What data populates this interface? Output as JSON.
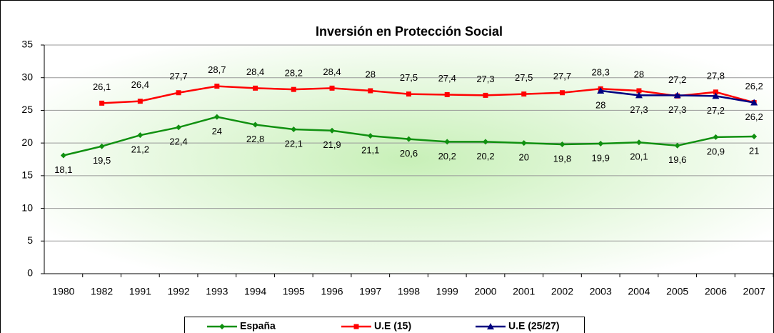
{
  "chart_data": {
    "type": "line",
    "title": "Inversión en Protección Social",
    "categories": [
      "1980",
      "1982",
      "1991",
      "1992",
      "1993",
      "1994",
      "1995",
      "1996",
      "1997",
      "1998",
      "1999",
      "2000",
      "2001",
      "2002",
      "2003",
      "2004",
      "2005",
      "2006",
      "2007"
    ],
    "ylim": [
      0,
      35
    ],
    "yticks": [
      0,
      5,
      10,
      15,
      20,
      25,
      30,
      35
    ],
    "grid": true,
    "legend": "bottom",
    "series": [
      {
        "name": "España",
        "color": "#109010",
        "marker": "diamond",
        "values": [
          18.1,
          19.5,
          21.2,
          22.4,
          24,
          22.8,
          22.1,
          21.9,
          21.1,
          20.6,
          20.2,
          20.2,
          20,
          19.8,
          19.9,
          20.1,
          19.6,
          20.9,
          21
        ],
        "value_labels": [
          "18,1",
          "19,5",
          "21,2",
          "22,4",
          "24",
          "22,8",
          "22,1",
          "21,9",
          "21,1",
          "20,6",
          "20,2",
          "20,2",
          "20",
          "19,8",
          "19,9",
          "20,1",
          "19,6",
          "20,9",
          "21"
        ]
      },
      {
        "name": "U.E (15)",
        "color": "#ff0000",
        "marker": "square",
        "values": [
          null,
          26.1,
          26.4,
          27.7,
          28.7,
          28.4,
          28.2,
          28.4,
          28,
          27.5,
          27.4,
          27.3,
          27.5,
          27.7,
          28.3,
          28,
          27.2,
          27.8,
          26.2
        ],
        "value_labels": [
          null,
          "26,1",
          "26,4",
          "27,7",
          "28,7",
          "28,4",
          "28,2",
          "28,4",
          "28",
          "27,5",
          "27,4",
          "27,3",
          "27,5",
          "27,7",
          "28,3",
          "28",
          "27,2",
          "27,8",
          "26,2"
        ]
      },
      {
        "name": "U.E (25/27)",
        "color": "#000080",
        "marker": "triangle",
        "values": [
          null,
          null,
          null,
          null,
          null,
          null,
          null,
          null,
          null,
          null,
          null,
          null,
          null,
          null,
          28,
          27.3,
          27.3,
          27.2,
          26.2
        ],
        "value_labels": [
          null,
          null,
          null,
          null,
          null,
          null,
          null,
          null,
          null,
          null,
          null,
          null,
          null,
          null,
          "28",
          "27,3",
          "27,3",
          "27,2",
          "26,2"
        ]
      }
    ]
  }
}
